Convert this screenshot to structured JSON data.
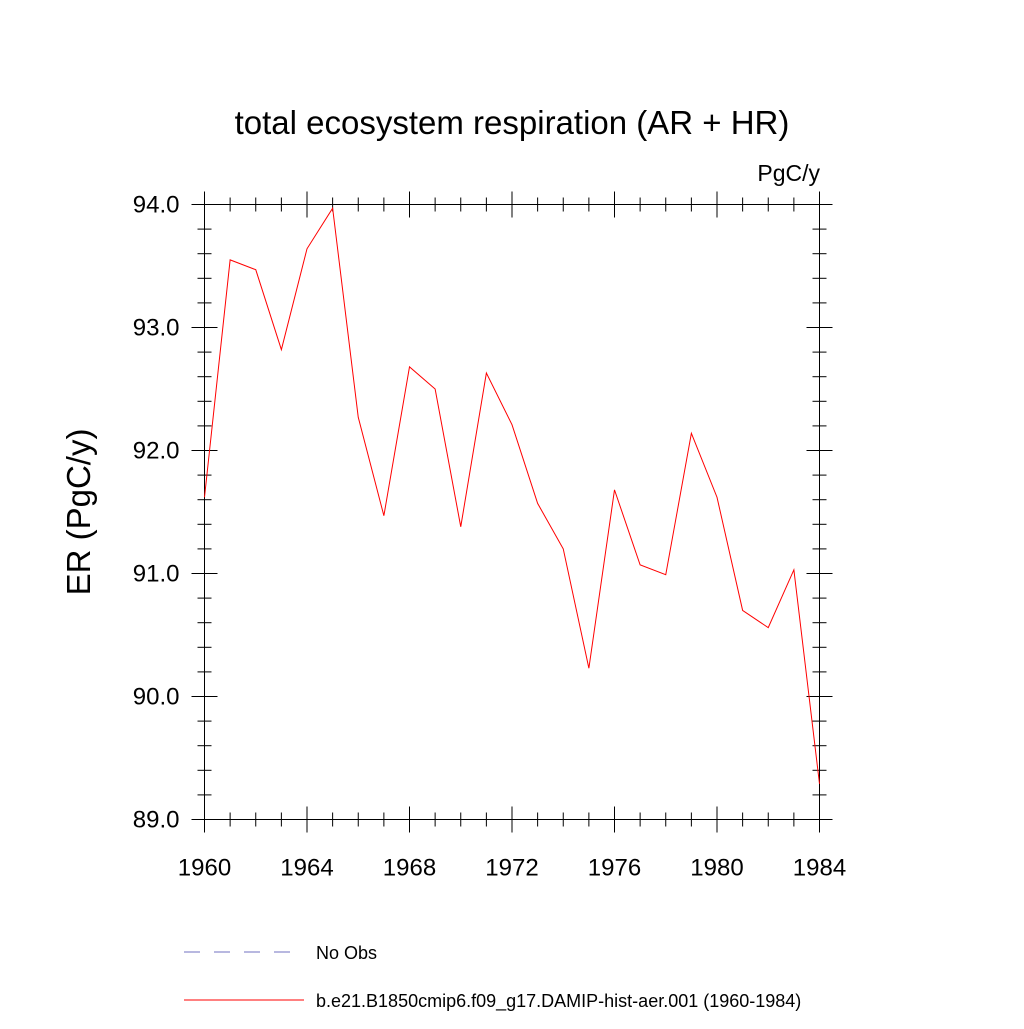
{
  "chart_data": {
    "type": "line",
    "title": "total ecosystem respiration (AR + HR)",
    "units_label": "PgC/y",
    "ylabel": "ER  (PgC/y)",
    "xlabel": "",
    "xlim": [
      1960,
      1984
    ],
    "ylim": [
      89.0,
      94.0
    ],
    "x_ticks": [
      1960,
      1964,
      1968,
      1972,
      1976,
      1980,
      1984
    ],
    "x_tick_labels": [
      "1960",
      "1964",
      "1968",
      "1972",
      "1976",
      "1980",
      "1984"
    ],
    "y_ticks": [
      89.0,
      90.0,
      91.0,
      92.0,
      93.0,
      94.0
    ],
    "y_tick_labels": [
      "89.0",
      "90.0",
      "91.0",
      "92.0",
      "93.0",
      "94.0"
    ],
    "grid": false,
    "legend_placement": "bottom",
    "series": [
      {
        "name": "No Obs",
        "color": "#7070c0",
        "dash": "dashed",
        "x": [],
        "values": []
      },
      {
        "name": "b.e21.B1850cmip6.f09_g17.DAMIP-hist-aer.001 (1960-1984)",
        "color": "#ff0000",
        "dash": "solid",
        "x": [
          1960,
          1961,
          1962,
          1963,
          1964,
          1965,
          1966,
          1967,
          1968,
          1969,
          1970,
          1971,
          1972,
          1973,
          1974,
          1975,
          1976,
          1977,
          1978,
          1979,
          1980,
          1981,
          1982,
          1983,
          1984
        ],
        "values": [
          91.62,
          93.55,
          93.47,
          92.82,
          93.64,
          93.97,
          92.27,
          91.47,
          92.68,
          92.5,
          91.38,
          92.63,
          92.21,
          91.57,
          91.2,
          90.23,
          91.68,
          91.07,
          90.99,
          92.14,
          91.62,
          90.7,
          90.56,
          91.03,
          89.29
        ]
      }
    ]
  }
}
